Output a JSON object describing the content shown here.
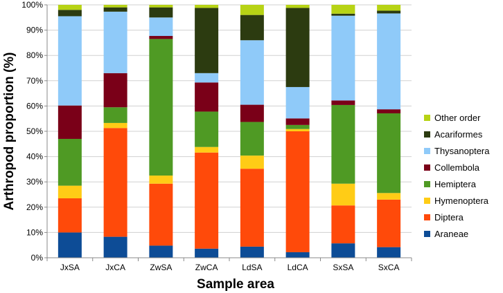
{
  "chart_data": {
    "type": "bar",
    "stacked": true,
    "title": "",
    "xlabel": "Sample area",
    "ylabel": "Arthropod proportion (%)",
    "ylim": [
      0,
      100
    ],
    "yticks": [
      "0%",
      "10%",
      "20%",
      "30%",
      "40%",
      "50%",
      "60%",
      "70%",
      "80%",
      "90%",
      "100%"
    ],
    "categories": [
      "JxSA",
      "JxCA",
      "ZwSA",
      "ZwCA",
      "LdSA",
      "LdCA",
      "SxSA",
      "SxCA"
    ],
    "legend_position": "right",
    "series": [
      {
        "name": "Araneae",
        "color": "#0d4c96",
        "values": [
          10.0,
          8.3,
          4.8,
          3.6,
          4.4,
          2.2,
          5.7,
          4.2
        ]
      },
      {
        "name": "Diptera",
        "color": "#ff4a0a",
        "values": [
          13.5,
          43.0,
          24.5,
          38.0,
          30.8,
          47.8,
          15.0,
          18.8
        ]
      },
      {
        "name": "Hymenoptera",
        "color": "#ffcc16",
        "values": [
          5.0,
          2.0,
          3.2,
          2.2,
          5.2,
          0.9,
          8.6,
          2.6
        ]
      },
      {
        "name": "Hemiptera",
        "color": "#4f9a24",
        "values": [
          18.5,
          6.2,
          54.0,
          14.0,
          13.3,
          1.6,
          31.1,
          31.5
        ]
      },
      {
        "name": "Collembola",
        "color": "#7a0018",
        "values": [
          13.2,
          13.5,
          1.2,
          11.5,
          6.8,
          2.6,
          1.8,
          1.6
        ]
      },
      {
        "name": "Thysanoptera",
        "color": "#8fcaf9",
        "values": [
          35.3,
          24.3,
          7.3,
          3.7,
          25.5,
          12.4,
          33.5,
          37.9
        ]
      },
      {
        "name": "Acariformes",
        "color": "#2c3b10",
        "values": [
          2.5,
          1.7,
          4.0,
          25.8,
          10.0,
          31.3,
          0.8,
          1.1
        ]
      },
      {
        "name": "Other order",
        "color": "#b7d315",
        "values": [
          2.0,
          1.0,
          1.0,
          1.2,
          4.0,
          1.2,
          3.5,
          2.3
        ]
      }
    ]
  }
}
